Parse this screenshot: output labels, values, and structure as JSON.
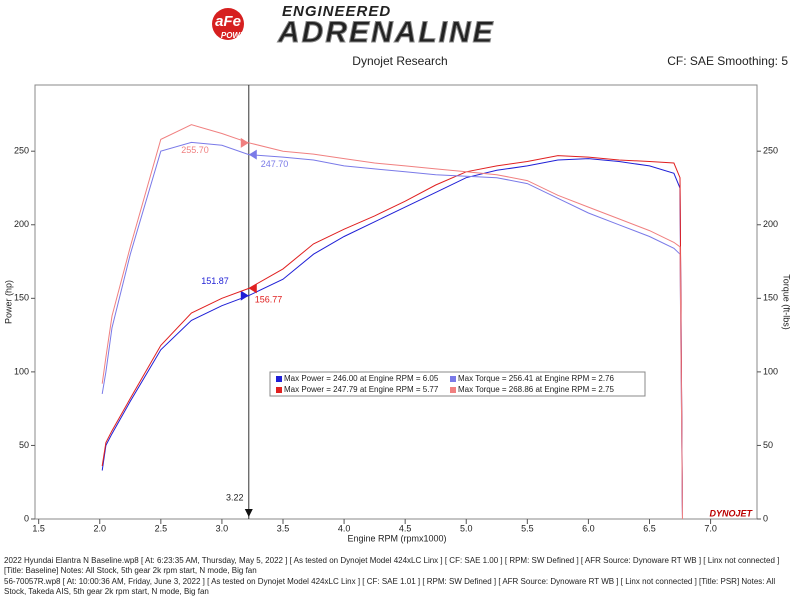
{
  "header": {
    "logo": "aFe",
    "logo_sub": "POWER",
    "tagline": "ENGINEERED",
    "brand": "ADRENALINE"
  },
  "chart_data": {
    "type": "line",
    "title": "Dynojet Research",
    "subtitle": "CF: SAE Smoothing: 5",
    "x_label": "Engine RPM (rpmx1000)",
    "y_label": "Power (hp)",
    "y2_label": "Torque (ft-lbs)",
    "watermark": "DYNOJET",
    "xlim": [
      1.47,
      7.38
    ],
    "xticks": [
      1.5,
      {
        "value": 2,
        "label": "2.0"
      },
      2.5,
      {
        "value": 3,
        "label": "3.0"
      },
      3.5,
      {
        "value": 4,
        "label": "4.0"
      },
      4.5,
      {
        "value": 5,
        "label": "5.0"
      },
      5.5,
      {
        "value": 6,
        "label": "6.0"
      },
      6.5,
      {
        "value": 7,
        "label": "7.0"
      }
    ],
    "ylim": [
      0,
      295
    ],
    "yticks": [
      0,
      50,
      100,
      150,
      200,
      250
    ],
    "y2lim": [
      0,
      295
    ],
    "y2ticks": [
      0,
      50,
      100,
      150,
      200,
      250
    ],
    "cursor_x": 3.22,
    "x": [
      2.02,
      2.05,
      2.1,
      2.25,
      2.5,
      2.75,
      3.0,
      3.22,
      3.5,
      3.75,
      4.0,
      4.25,
      4.5,
      4.75,
      5.0,
      5.25,
      5.5,
      5.75,
      6.0,
      6.25,
      6.5,
      6.7,
      6.75,
      6.77
    ],
    "series": [
      {
        "name": "Max Power = 246.00 at Engine RPM = 6.05",
        "color": "#1f1fd6",
        "cursor_value": 151.87,
        "values": [
          33,
          50,
          58,
          80,
          115,
          135,
          145,
          151.87,
          163,
          180,
          192,
          202,
          212,
          222,
          232,
          237,
          240,
          244,
          245,
          243,
          240,
          235,
          225,
          0
        ]
      },
      {
        "name": "Max Power = 247.79 at Engine RPM = 5.77",
        "color": "#e02020",
        "cursor_value": 156.77,
        "values": [
          36,
          52,
          60,
          82,
          118,
          140,
          150,
          156.77,
          170,
          187,
          197,
          206,
          216,
          227,
          236,
          240,
          243,
          247,
          246,
          244,
          243,
          242,
          232,
          0
        ]
      },
      {
        "name": "Max Torque = 256.41 at Engine RPM = 2.76",
        "color": "#7a7ae8",
        "axis": "y2",
        "cursor_value": 247.7,
        "cursor_label": "247.70",
        "values": [
          85,
          100,
          130,
          180,
          250,
          256,
          254,
          247.7,
          246,
          244,
          240,
          238,
          236,
          234,
          233,
          232,
          228,
          218,
          208,
          200,
          192,
          184,
          180,
          0
        ]
      },
      {
        "name": "Max Torque = 268.86 at Engine RPM = 2.75",
        "color": "#f08080",
        "axis": "y2",
        "cursor_value": 255.7,
        "cursor_label": "255.70",
        "values": [
          92,
          110,
          138,
          185,
          258,
          268,
          262,
          255.7,
          250,
          248,
          245,
          242,
          240,
          238,
          236,
          234,
          230,
          220,
          212,
          204,
          196,
          188,
          185,
          0
        ]
      }
    ]
  },
  "footer": [
    "2022 Hyundai Elantra N Baseline.wp8 [ At: 6:23:35 AM, Thursday, May 5, 2022 ] [ As tested on Dynojet Model 424xLC Linx ] [ CF: SAE 1.00 ] [ RPM: SW Defined ] [ AFR Source: Dynoware RT WB ] [ Linx not connected ] [Title: Baseline]  Notes: All Stock, 5th gear 2k rpm start, N mode, Big fan",
    "56-70057R.wp8 [ At: 10:00:36 AM, Friday, June 3, 2022 ] [ As tested on Dynojet Model 424xLC Linx ] [ CF: SAE 1.01 ] [ RPM: SW Defined ] [ AFR Source: Dynoware RT WB ] [ Linx not connected ] [Title: PSR]  Notes: All Stock, Takeda AIS, 5th gear 2k rpm start, N mode, Big fan"
  ]
}
